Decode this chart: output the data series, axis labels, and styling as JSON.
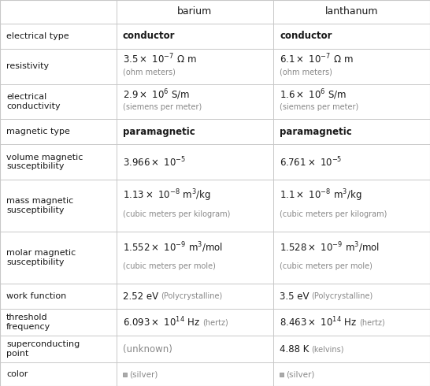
{
  "col_headers": [
    "",
    "barium",
    "lanthanum"
  ],
  "grid_color": "#c8c8c8",
  "text_color": "#1a1a1a",
  "gray_color": "#888888",
  "silver_color": "#aaaaaa",
  "bg_color": "#ffffff",
  "font_family": "DejaVu Serif",
  "rows": [
    {
      "label": "electrical type",
      "label_lines": [
        "electrical type"
      ],
      "ba_line1": "conductor",
      "ba_line1_style": "bold",
      "ba_line2": "",
      "la_line1": "conductor",
      "la_line1_style": "bold",
      "la_line2": ""
    },
    {
      "label": "resistivity",
      "label_lines": [
        "resistivity"
      ],
      "ba_line1": "3.5×10$^{-7}$ Ωm",
      "ba_line1_style": "normal",
      "ba_line2": "(ohm meters)",
      "la_line1": "6.1×10$^{-7}$ Ωm",
      "la_line1_style": "normal",
      "la_line2": "(ohm meters)"
    },
    {
      "label": "electrical\nconductivity",
      "label_lines": [
        "electrical conductivity"
      ],
      "ba_line1": "2.9×10$^{6}$ S/m",
      "ba_line1_style": "normal",
      "ba_line2": "(siemens per meter)",
      "la_line1": "1.6×10$^{6}$ S/m",
      "la_line1_style": "normal",
      "la_line2": "(siemens per meter)"
    },
    {
      "label": "magnetic type",
      "label_lines": [
        "magnetic type"
      ],
      "ba_line1": "paramagnetic",
      "ba_line1_style": "bold",
      "ba_line2": "",
      "la_line1": "paramagnetic",
      "la_line1_style": "bold",
      "la_line2": ""
    },
    {
      "label": "volume magnetic\nsusceptibility",
      "label_lines": [
        "volume magnetic",
        "susceptibility"
      ],
      "ba_line1": "3.966×10$^{-5}$",
      "ba_line1_style": "normal",
      "ba_line2": "",
      "la_line1": "6.761×10$^{-5}$",
      "la_line1_style": "normal",
      "la_line2": ""
    },
    {
      "label": "mass magnetic\nsusceptibility",
      "label_lines": [
        "mass magnetic",
        "susceptibility"
      ],
      "ba_line1": "1.13×10$^{-8}$ m$^{3}$/kg",
      "ba_line1_style": "normal",
      "ba_line2": "(cubic meters per kilogram)",
      "la_line1": "1.1×10$^{-8}$ m$^{3}$/kg",
      "la_line1_style": "normal",
      "la_line2": "(cubic meters per kilogram)"
    },
    {
      "label": "molar magnetic\nsusceptibility",
      "label_lines": [
        "molar magnetic",
        "susceptibility"
      ],
      "ba_line1": "1.552×10$^{-9}$ m$^{3}$/mol",
      "ba_line1_style": "normal",
      "ba_line2": "(cubic meters per mole)",
      "la_line1": "1.528×10$^{-9}$ m$^{3}$/mol",
      "la_line1_style": "normal",
      "la_line2": "(cubic meters per mole)"
    },
    {
      "label": "work function",
      "label_lines": [
        "work function"
      ],
      "ba_line1": "2.52 eV",
      "ba_line1_style": "normal",
      "ba_line2": "(Polycrystalline)",
      "ba_line2_inline": true,
      "la_line1": "3.5 eV",
      "la_line1_style": "normal",
      "la_line2": "(Polycrystalline)",
      "la_line2_inline": true
    },
    {
      "label": "threshold\nfrequency",
      "label_lines": [
        "threshold frequency"
      ],
      "ba_line1": "6.093×10$^{14}$ Hz",
      "ba_line1_style": "normal",
      "ba_line2": "(hertz)",
      "ba_line2_inline": true,
      "la_line1": "8.463×10$^{14}$ Hz",
      "la_line1_style": "normal",
      "la_line2": "(hertz)",
      "la_line2_inline": true
    },
    {
      "label": "superconducting\npoint",
      "label_lines": [
        "superconducting point"
      ],
      "ba_line1": "(unknown)",
      "ba_line1_style": "gray",
      "ba_line2": "",
      "la_line1": "4.88 K",
      "la_line1_style": "normal",
      "la_line2": "(kelvins)",
      "la_line2_inline": true
    },
    {
      "label": "color",
      "label_lines": [
        "color"
      ],
      "ba_line1": "■ (silver)",
      "ba_line1_style": "silver",
      "ba_line2": "",
      "la_line1": "■ (silver)",
      "la_line1_style": "silver",
      "la_line2": ""
    }
  ]
}
